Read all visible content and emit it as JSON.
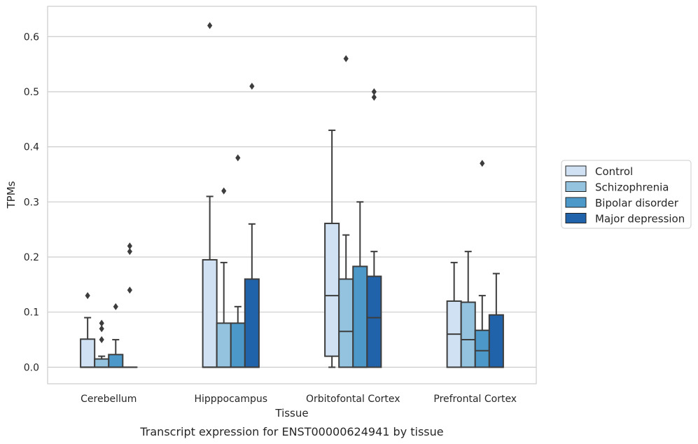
{
  "chart_data": {
    "type": "box",
    "caption": "Transcript expression for ENST00000624941 by tissue",
    "xlabel": "Tissue",
    "ylabel": "TPMs",
    "ylim": [
      -0.03,
      0.655
    ],
    "yticks": [
      0.0,
      0.1,
      0.2,
      0.3,
      0.4,
      0.5,
      0.6
    ],
    "ytick_labels": [
      "0.0",
      "0.1",
      "0.2",
      "0.3",
      "0.4",
      "0.5",
      "0.6"
    ],
    "grid": "horizontal",
    "legend_position": "right",
    "categories": [
      "Cerebellum",
      "Hipppocampus",
      "Orbitofontal Cortex",
      "Prefrontal Cortex"
    ],
    "series": [
      {
        "name": "Control",
        "color": "#cfe1f2",
        "boxes": [
          {
            "q1": 0.0,
            "median": 0.0,
            "q3": 0.051,
            "whisker_low": 0.0,
            "whisker_high": 0.09,
            "outliers": [
              0.13
            ]
          },
          {
            "q1": 0.0,
            "median": 0.0,
            "q3": 0.195,
            "whisker_low": 0.0,
            "whisker_high": 0.31,
            "outliers": [
              0.62
            ]
          },
          {
            "q1": 0.02,
            "median": 0.13,
            "q3": 0.261,
            "whisker_low": 0.0,
            "whisker_high": 0.43,
            "outliers": []
          },
          {
            "q1": 0.0,
            "median": 0.06,
            "q3": 0.12,
            "whisker_low": 0.0,
            "whisker_high": 0.19,
            "outliers": []
          }
        ]
      },
      {
        "name": "Schizophrenia",
        "color": "#93c3df",
        "boxes": [
          {
            "q1": 0.0,
            "median": 0.0,
            "q3": 0.015,
            "whisker_low": 0.0,
            "whisker_high": 0.02,
            "outliers": [
              0.05,
              0.07,
              0.08
            ]
          },
          {
            "q1": 0.0,
            "median": 0.0,
            "q3": 0.08,
            "whisker_low": 0.0,
            "whisker_high": 0.19,
            "outliers": [
              0.32
            ]
          },
          {
            "q1": 0.0,
            "median": 0.065,
            "q3": 0.16,
            "whisker_low": 0.0,
            "whisker_high": 0.24,
            "outliers": [
              0.56
            ]
          },
          {
            "q1": 0.0,
            "median": 0.05,
            "q3": 0.118,
            "whisker_low": 0.0,
            "whisker_high": 0.21,
            "outliers": []
          }
        ]
      },
      {
        "name": "Bipolar disorder",
        "color": "#4b98c9",
        "boxes": [
          {
            "q1": 0.0,
            "median": 0.0,
            "q3": 0.023,
            "whisker_low": 0.0,
            "whisker_high": 0.05,
            "outliers": [
              0.11
            ]
          },
          {
            "q1": 0.0,
            "median": 0.0,
            "q3": 0.08,
            "whisker_low": 0.0,
            "whisker_high": 0.11,
            "outliers": [
              0.38
            ]
          },
          {
            "q1": 0.0,
            "median": 0.0,
            "q3": 0.183,
            "whisker_low": 0.0,
            "whisker_high": 0.3,
            "outliers": []
          },
          {
            "q1": 0.0,
            "median": 0.03,
            "q3": 0.067,
            "whisker_low": 0.0,
            "whisker_high": 0.13,
            "outliers": [
              0.37
            ]
          }
        ]
      },
      {
        "name": "Major depression",
        "color": "#2163aa",
        "boxes": [
          {
            "q1": 0.0,
            "median": 0.0,
            "q3": 0.0,
            "whisker_low": 0.0,
            "whisker_high": 0.0,
            "outliers": [
              0.14,
              0.21,
              0.22
            ]
          },
          {
            "q1": 0.0,
            "median": 0.0,
            "q3": 0.16,
            "whisker_low": 0.0,
            "whisker_high": 0.26,
            "outliers": [
              0.51
            ]
          },
          {
            "q1": 0.0,
            "median": 0.09,
            "q3": 0.165,
            "whisker_low": 0.0,
            "whisker_high": 0.21,
            "outliers": [
              0.49,
              0.5
            ]
          },
          {
            "q1": 0.0,
            "median": 0.0,
            "q3": 0.095,
            "whisker_low": 0.0,
            "whisker_high": 0.17,
            "outliers": []
          }
        ]
      }
    ]
  }
}
